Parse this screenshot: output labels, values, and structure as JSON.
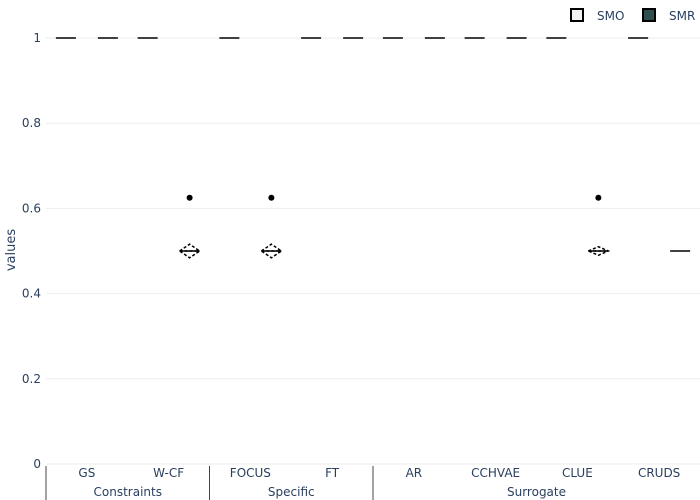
{
  "chart_data": {
    "type": "box",
    "ylabel": "values",
    "ylim": [
      0,
      1
    ],
    "yticks": [
      "0",
      "0.2",
      "0.4",
      "0.6",
      "0.8",
      "1"
    ],
    "ytick_values": [
      0,
      0.2,
      0.4,
      0.6,
      0.8,
      1
    ],
    "groups": [
      {
        "name": "Constraints",
        "categories": [
          "GS",
          "W-CF"
        ]
      },
      {
        "name": "Specific",
        "categories": [
          "FOCUS",
          "FT"
        ]
      },
      {
        "name": "Surrogate",
        "categories": [
          "AR",
          "CCHVAE",
          "CLUE",
          "CRUDS"
        ]
      }
    ],
    "categories": [
      "GS",
      "W-CF",
      "FOCUS",
      "FT",
      "AR",
      "CCHVAE",
      "CLUE",
      "CRUDS"
    ],
    "legend": {
      "placement": "top-right",
      "items": [
        "SMO",
        "SMR"
      ]
    },
    "series": [
      {
        "name": "SMO",
        "color": "#000000",
        "fill": "#f2f2f2",
        "boxes": [
          {
            "category": "GS",
            "median": 1
          },
          {
            "category": "W-CF",
            "median": 1
          },
          {
            "category": "FOCUS",
            "median": 1
          },
          {
            "category": "FT",
            "median": 1
          },
          {
            "category": "AR",
            "median": 1
          },
          {
            "category": "CCHVAE",
            "median": 1
          },
          {
            "category": "CLUE",
            "median": 1
          },
          {
            "category": "CRUDS",
            "median": 1
          }
        ]
      },
      {
        "name": "SMR",
        "color": "#000000",
        "fill": "#2f4f4f",
        "boxes": [
          {
            "category": "GS",
            "median": 1
          },
          {
            "category": "W-CF",
            "median": 0.5,
            "mean": 0.5,
            "sd_low": 0.484,
            "sd_high": 0.516,
            "outlier": 0.625
          },
          {
            "category": "FOCUS",
            "median": 0.5,
            "mean": 0.5,
            "sd_low": 0.484,
            "sd_high": 0.516,
            "outlier": 0.625
          },
          {
            "category": "FT",
            "median": 1
          },
          {
            "category": "AR",
            "median": 1
          },
          {
            "category": "CCHVAE",
            "median": 1
          },
          {
            "category": "CLUE",
            "median": 0.5,
            "mean": 0.5,
            "sd_low": 0.49,
            "sd_high": 0.51,
            "outlier": 0.625
          },
          {
            "category": "CRUDS",
            "median": 0.5
          }
        ]
      }
    ]
  }
}
